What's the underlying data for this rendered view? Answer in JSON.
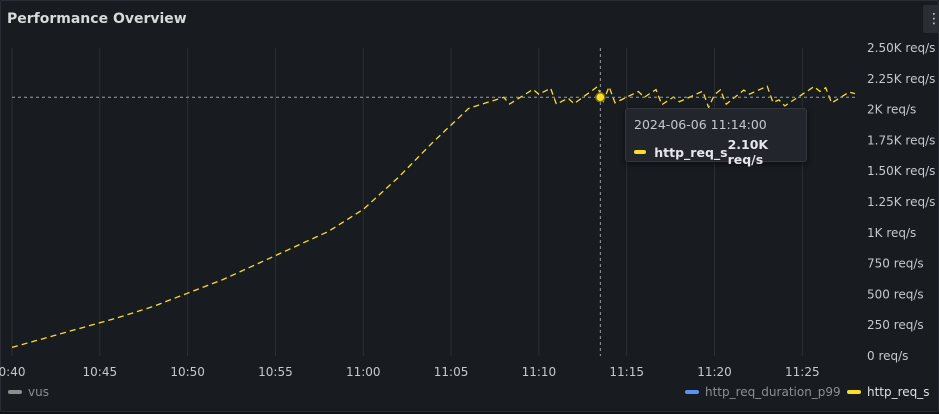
{
  "panel": {
    "title": "Performance Overview",
    "menu_icon": "vertical-ellipsis-icon"
  },
  "colors": {
    "series_req": "#fade2a",
    "series_vus": "#8e8e8e",
    "series_p99": "#5794f2",
    "grid": "#2c2f35"
  },
  "legend": {
    "vus": "vus",
    "http_req_duration_p99": "http_req_duration_p99",
    "http_req_s": "http_req_s"
  },
  "tooltip": {
    "time": "2024-06-06 11:14:00",
    "series": "http_req_s",
    "value": "2.10K req/s"
  },
  "chart_data": {
    "type": "line",
    "title": "Performance Overview",
    "x_tick_labels": [
      "0:40",
      "10:45",
      "10:50",
      "10:55",
      "11:00",
      "11:05",
      "11:10",
      "11:15",
      "11:20",
      "11:25"
    ],
    "y_tick_labels": [
      "0 req/s",
      "250 req/s",
      "500 req/s",
      "750 req/s",
      "1K req/s",
      "1.25K req/s",
      "1.50K req/s",
      "1.75K req/s",
      "2K req/s",
      "2.25K req/s",
      "2.50K req/s"
    ],
    "ylim": [
      0,
      2500
    ],
    "xlim_minutes": [
      0,
      48
    ],
    "y_axis_side": "right",
    "legend_position": "bottom",
    "grid": true,
    "series": [
      {
        "name": "http_req_s",
        "x_minutes": [
          0,
          2,
          4,
          6,
          8,
          10,
          12,
          14,
          16,
          18,
          20,
          22,
          24,
          26,
          28,
          30,
          32,
          34,
          36,
          38,
          40,
          42,
          44,
          46,
          48
        ],
        "values": [
          70,
          150,
          230,
          310,
          400,
          510,
          620,
          750,
          880,
          1010,
          1190,
          1450,
          1740,
          2010,
          2100,
          2110,
          2090,
          2130,
          2100,
          2120,
          2080,
          2140,
          2100,
          2120,
          2130
        ]
      }
    ],
    "highlight": {
      "x_minutes": 33.5,
      "value": 2100,
      "label": "2024-06-06 11:14:00"
    }
  }
}
